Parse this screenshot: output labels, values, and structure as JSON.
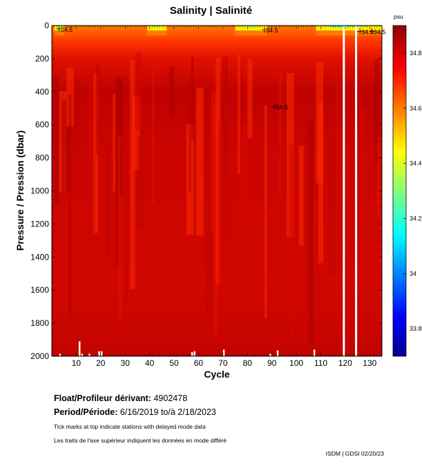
{
  "title": "Salinity | Salinité",
  "float_label": "Float/Profileur dérivant:",
  "float_id": "4902478",
  "period_label": "Period/Période:",
  "period_value": "6/16/2019  to/à  2/18/2023",
  "note_en": "Tick marks at top indicate stations with delayed mode data",
  "note_fr": "Les traits de l'axe supérieur indiquent les données en mode différé",
  "credit": "ISDM | GDSI  02/20/23",
  "colors": {
    "deep": "#a90000",
    "main": "#d40600",
    "bright": "#ff2a00",
    "orange": "#ff7a00",
    "yellow": "#ffee00",
    "green": "#a8ff55",
    "cyan": "#22ffff"
  },
  "chart_data": {
    "type": "heatmap",
    "title": "Salinity | Salinité",
    "xlabel": "Cycle",
    "ylabel": "Pressure / Pression (dbar)",
    "xlim": [
      0,
      135
    ],
    "ylim": [
      2000,
      0
    ],
    "x_ticks": [
      10,
      20,
      30,
      40,
      50,
      60,
      70,
      80,
      90,
      100,
      110,
      120,
      130
    ],
    "y_ticks": [
      0,
      200,
      400,
      600,
      800,
      1000,
      1200,
      1400,
      1600,
      1800,
      2000
    ],
    "colorbar": {
      "unit": "psu",
      "range": [
        33.7,
        34.9
      ],
      "tick_labels": [
        "34.8",
        "34.6",
        "34.4",
        "34.2",
        "34",
        "33.8"
      ],
      "tick_values": [
        34.8,
        34.6,
        34.4,
        34.2,
        34.0,
        33.8
      ]
    },
    "contour_labels": [
      {
        "text": "34.5",
        "cycle": 3,
        "pressure": 20
      },
      {
        "text": "34.5",
        "cycle": 87,
        "pressure": 25
      },
      {
        "text": "34.5",
        "cycle": 91,
        "pressure": 490
      },
      {
        "text": "34.5",
        "cycle": 126,
        "pressure": 35
      },
      {
        "text": "34.5",
        "cycle": 131,
        "pressure": 35
      }
    ],
    "missing_cycles": [
      119,
      124
    ],
    "fresh_surface_patches": [
      {
        "from_cycle": 1,
        "to_cycle": 5
      },
      {
        "from_cycle": 39,
        "to_cycle": 47
      },
      {
        "from_cycle": 75,
        "to_cycle": 88
      },
      {
        "from_cycle": 108,
        "to_cycle": 135
      }
    ]
  }
}
